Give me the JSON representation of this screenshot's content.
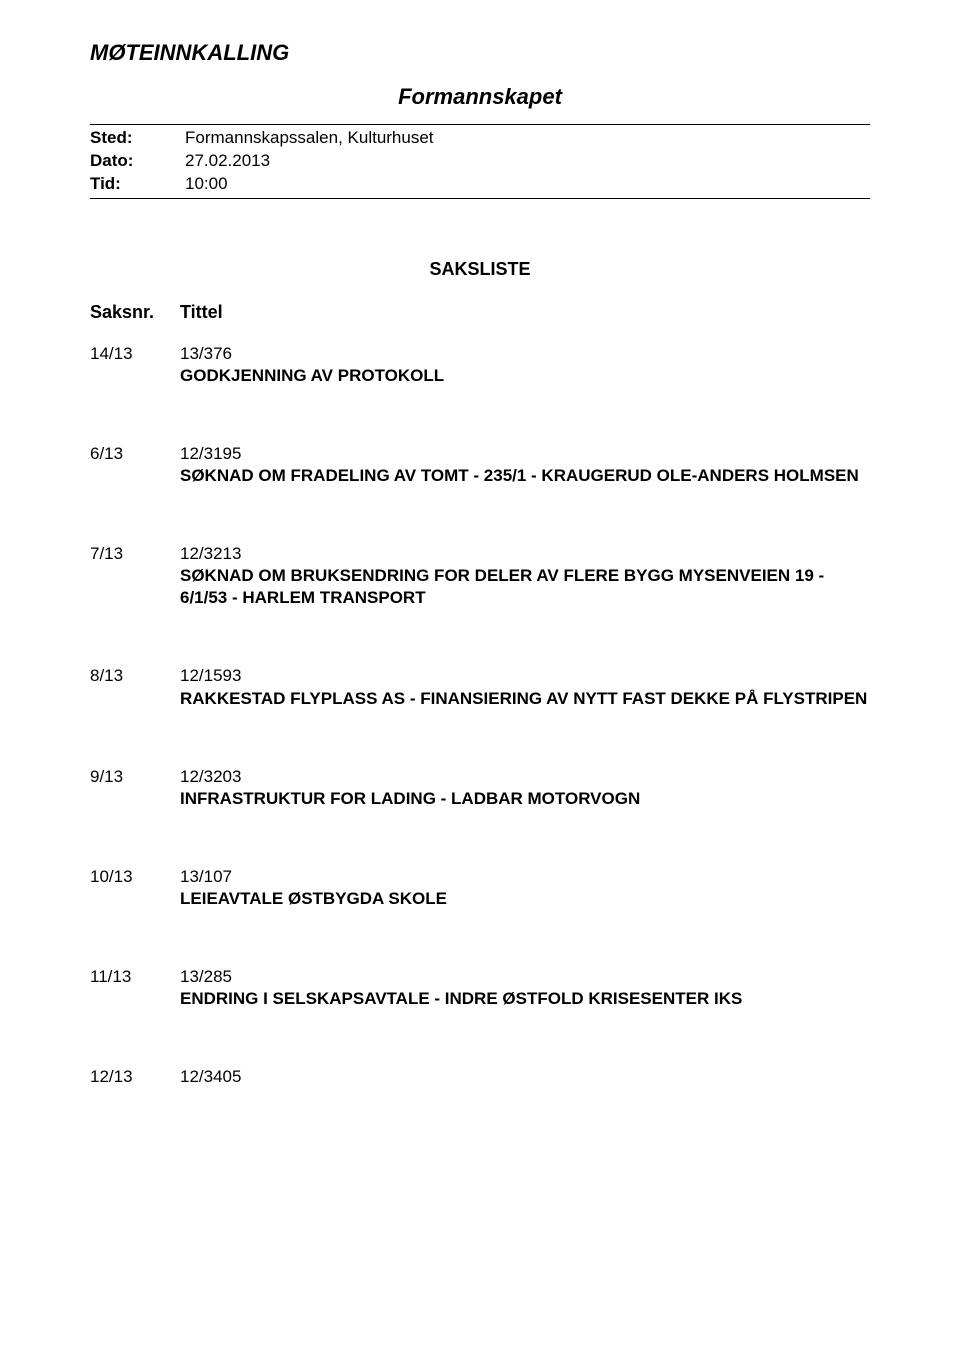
{
  "document": {
    "title": "MØTEINNKALLING",
    "subtitle": "Formannskapet"
  },
  "meta": {
    "sted_label": "Sted:",
    "sted_value": "Formannskapssalen, Kulturhuset",
    "dato_label": "Dato:",
    "dato_value": "27.02.2013",
    "tid_label": "Tid:",
    "tid_value": "10:00"
  },
  "list_heading": "SAKSLISTE",
  "columns": {
    "case": "Saksnr.",
    "title": "Tittel"
  },
  "items": [
    {
      "case": "14/13",
      "ref": "13/376",
      "title": "GODKJENNING AV PROTOKOLL"
    },
    {
      "case": "6/13",
      "ref": "12/3195",
      "title": "SØKNAD OM FRADELING AV TOMT - 235/1 - KRAUGERUD OLE-ANDERS HOLMSEN"
    },
    {
      "case": "7/13",
      "ref": "12/3213",
      "title": "SØKNAD OM BRUKSENDRING FOR DELER AV FLERE BYGG MYSENVEIEN 19 - 6/1/53 - HARLEM TRANSPORT"
    },
    {
      "case": "8/13",
      "ref": "12/1593",
      "title": "RAKKESTAD FLYPLASS AS - FINANSIERING AV NYTT FAST DEKKE PÅ FLYSTRIPEN"
    },
    {
      "case": "9/13",
      "ref": "12/3203",
      "title": "INFRASTRUKTUR FOR LADING - LADBAR MOTORVOGN"
    },
    {
      "case": "10/13",
      "ref": "13/107",
      "title": "LEIEAVTALE ØSTBYGDA SKOLE"
    },
    {
      "case": "11/13",
      "ref": "13/285",
      "title": "ENDRING I SELSKAPSAVTALE - INDRE ØSTFOLD KRISESENTER IKS"
    },
    {
      "case": "12/13",
      "ref": "12/3405",
      "title": ""
    }
  ]
}
